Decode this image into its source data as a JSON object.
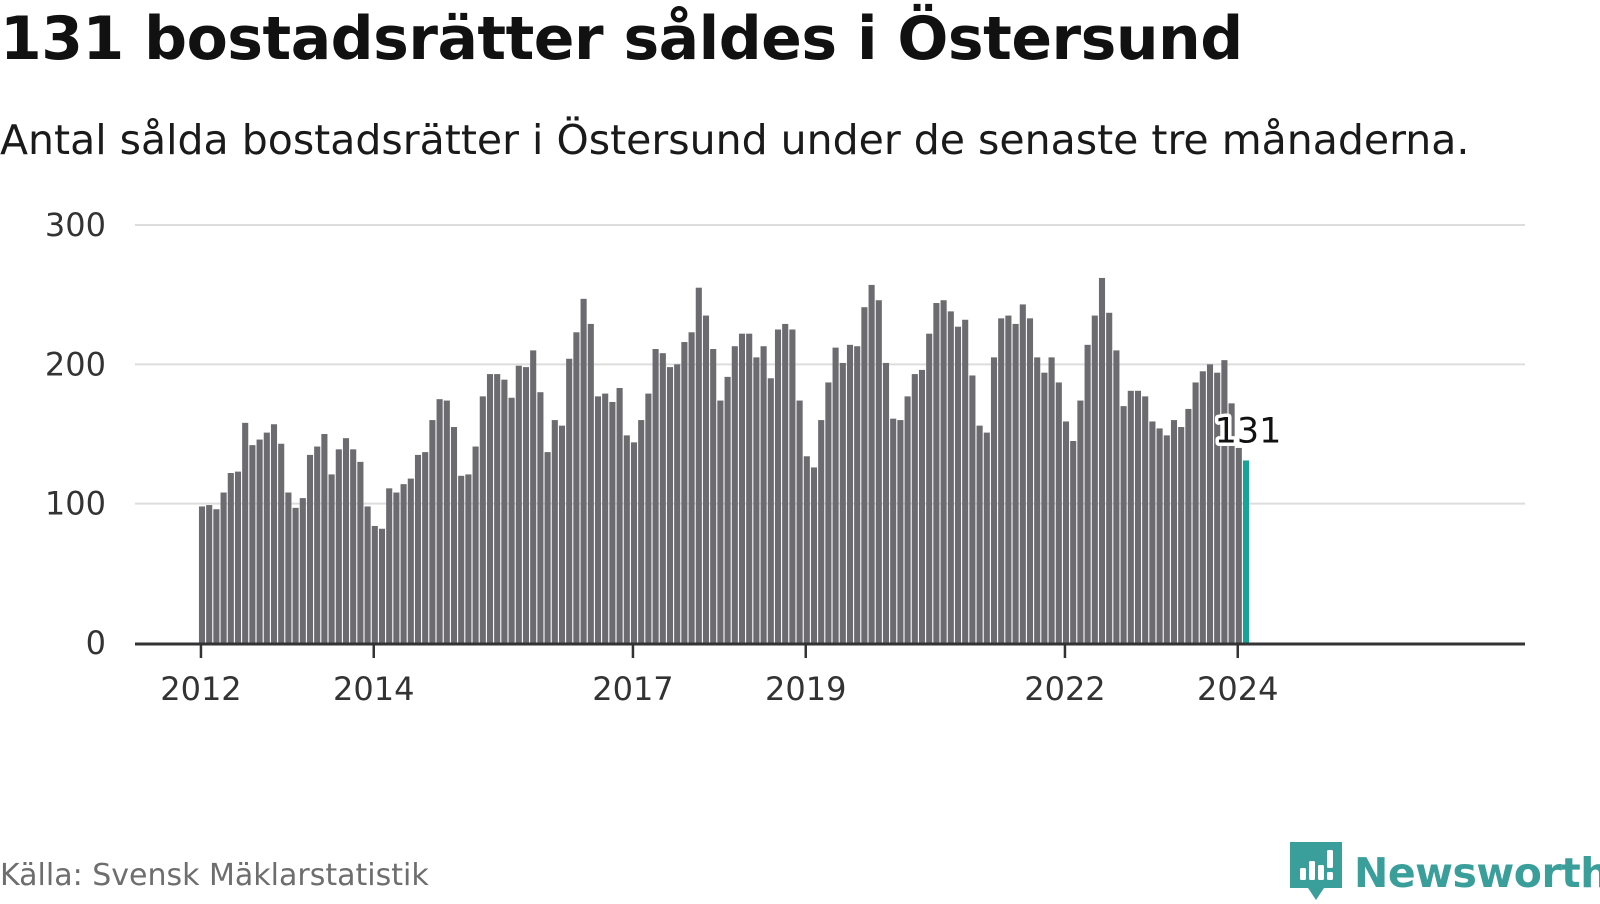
{
  "header": {
    "title": "131 bostadsrätter såldes i Östersund",
    "subtitle": "Antal sålda bostadsrätter i Östersund under de senaste tre månaderna."
  },
  "footer": {
    "source": "Källa: Svensk Mäklarstatistik",
    "brand": "Newsworthy"
  },
  "colors": {
    "bar": "#6b6b70",
    "highlight": "#16a39a",
    "grid": "#dddddd",
    "axis": "#333333",
    "brand": "#3a9f9a"
  },
  "icons": {
    "brand_logo": "newsworthy-bar-chart-bubble-icon"
  },
  "chart_data": {
    "type": "bar",
    "title": "131 bostadsrätter såldes i Östersund",
    "subtitle": "Antal sålda bostadsrätter i Östersund under de senaste tre månaderna.",
    "xlabel": "",
    "ylabel": "",
    "ylim": [
      0,
      300
    ],
    "yticks": [
      0,
      100,
      200,
      300
    ],
    "grid": true,
    "x_start": "2012-01",
    "x_end": "2024-02",
    "xticks": [
      {
        "label": "2012",
        "index": 0
      },
      {
        "label": "2014",
        "index": 24
      },
      {
        "label": "2017",
        "index": 60
      },
      {
        "label": "2019",
        "index": 84
      },
      {
        "label": "2022",
        "index": 120
      },
      {
        "label": "2024",
        "index": 144
      }
    ],
    "values": [
      98,
      99,
      96,
      108,
      122,
      123,
      158,
      142,
      146,
      151,
      157,
      143,
      108,
      97,
      104,
      135,
      141,
      150,
      121,
      139,
      147,
      139,
      130,
      98,
      84,
      82,
      111,
      108,
      114,
      118,
      135,
      137,
      160,
      175,
      174,
      155,
      120,
      121,
      141,
      177,
      193,
      193,
      189,
      176,
      199,
      198,
      210,
      180,
      137,
      160,
      156,
      204,
      223,
      247,
      229,
      177,
      179,
      173,
      183,
      149,
      144,
      160,
      179,
      211,
      208,
      198,
      200,
      216,
      223,
      255,
      235,
      211,
      174,
      191,
      213,
      222,
      222,
      205,
      213,
      190,
      225,
      229,
      225,
      174,
      134,
      126,
      160,
      187,
      212,
      201,
      214,
      213,
      241,
      257,
      246,
      201,
      161,
      160,
      177,
      193,
      196,
      222,
      244,
      246,
      238,
      227,
      232,
      192,
      156,
      151,
      205,
      233,
      235,
      229,
      243,
      233,
      205,
      194,
      205,
      187,
      159,
      145,
      174,
      214,
      235,
      262,
      237,
      210,
      170,
      181,
      181,
      177,
      159,
      154,
      149,
      160,
      155,
      168,
      187,
      195,
      200,
      194,
      203,
      172,
      140,
      131
    ],
    "highlight_index": 145,
    "callout": "131"
  }
}
